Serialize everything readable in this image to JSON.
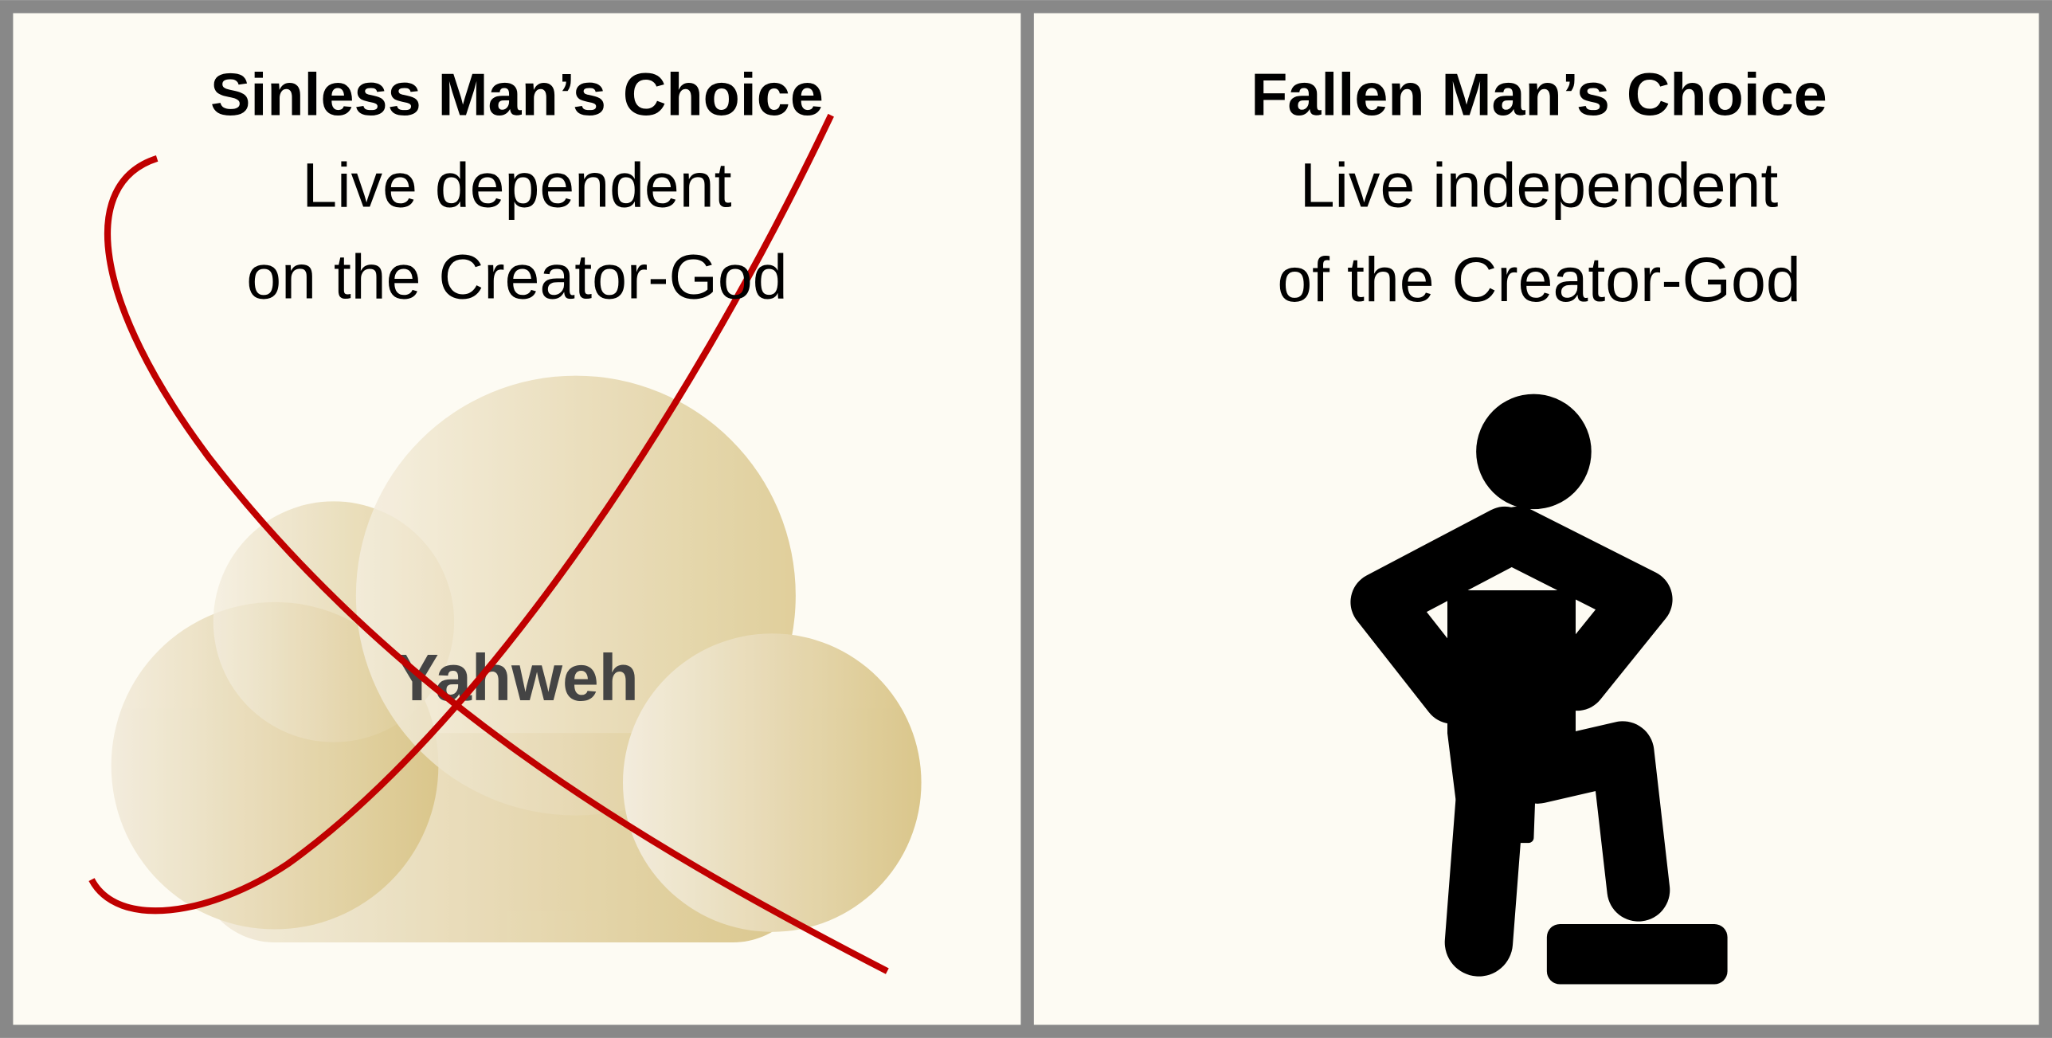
{
  "panels": [
    {
      "title": "Sinless Man’s Choice",
      "lines": [
        "Live dependent",
        "on the Creator-God"
      ],
      "cloud_label": "Yahweh"
    },
    {
      "title": "Fallen Man’s Choice",
      "lines": [
        "Live independent",
        "of the Creator-God"
      ]
    }
  ]
}
